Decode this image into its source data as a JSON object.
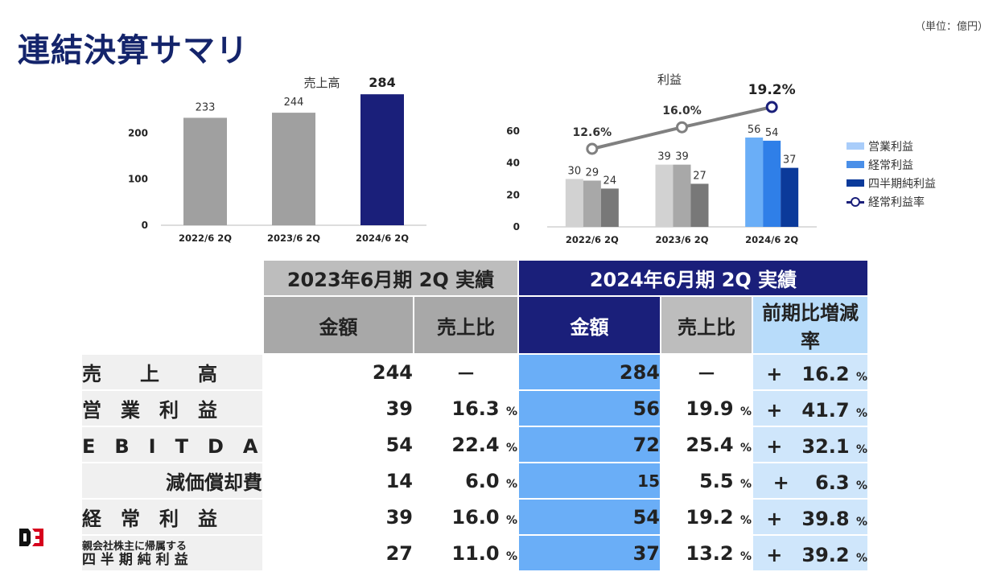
{
  "page": {
    "title": "連結決算サマリ",
    "unit_note": "（単位：億円）"
  },
  "chart_data": [
    {
      "type": "bar",
      "title": "売上高",
      "categories": [
        "2022/6 2Q",
        "2023/6 2Q",
        "2024/6 2Q"
      ],
      "values": [
        233,
        244,
        284
      ],
      "yticks": [
        0,
        100,
        200
      ],
      "ylim": [
        0,
        300
      ],
      "colors": [
        "#a0a0a0",
        "#a0a0a0",
        "#1a1f7a"
      ]
    },
    {
      "type": "bar",
      "title": "利益",
      "categories": [
        "2022/6 2Q",
        "2023/6 2Q",
        "2024/6 2Q"
      ],
      "series": [
        {
          "name": "営業利益",
          "values": [
            30,
            39,
            56
          ]
        },
        {
          "name": "経常利益",
          "values": [
            29,
            39,
            54
          ]
        },
        {
          "name": "四半期純利益",
          "values": [
            24,
            27,
            37
          ]
        }
      ],
      "line": {
        "name": "経常利益率",
        "values": [
          12.6,
          16.0,
          19.2
        ],
        "labels": [
          "12.6%",
          "16.0%",
          "19.2%"
        ]
      },
      "yticks": [
        0,
        20,
        40,
        60
      ],
      "ylim": [
        0,
        60
      ],
      "colors_past": [
        [
          "#d2d2d2",
          "#a8a8a8",
          "#787878"
        ],
        [
          "#d2d2d2",
          "#a8a8a8",
          "#787878"
        ]
      ],
      "colors_current": [
        "#6aaef7",
        "#2f7fe8",
        "#0b3a9a"
      ],
      "legend_position": "right"
    }
  ],
  "table": {
    "header_2023": "2023年6月期 2Q 実績",
    "header_2024": "2024年6月期 2Q 実績",
    "sub_amount": "金額",
    "sub_ratio": "売上比",
    "sub_change": "前期比増減率",
    "pct": "%",
    "rows": [
      {
        "label": "売　　上　　高",
        "v23": "244",
        "r23": "－",
        "v24": "284",
        "r24": "－",
        "chg": "+　16.2"
      },
      {
        "label": "営　業　利　益",
        "v23": "39",
        "r23": "16.3",
        "v24": "56",
        "r24": "19.9",
        "chg": "+　41.7"
      },
      {
        "label": "E　B　I　T　D　A",
        "v23": "54",
        "r23": "22.4",
        "v24": "72",
        "r24": "25.4",
        "chg": "+　32.1"
      },
      {
        "label": "減価償却費",
        "v23": "14",
        "r23": "6.0",
        "v24": "15",
        "r24": "5.5",
        "chg": "+　 6.3"
      },
      {
        "label": "経　常　利　益",
        "v23": "39",
        "r23": "16.0",
        "v24": "54",
        "r24": "19.2",
        "chg": "+　39.8"
      },
      {
        "label1": "親会社株主に帰属する",
        "label2": "四 半 期 純 利 益",
        "v23": "27",
        "r23": "11.0",
        "v24": "37",
        "r24": "13.2",
        "chg": "+　39.2"
      }
    ]
  }
}
